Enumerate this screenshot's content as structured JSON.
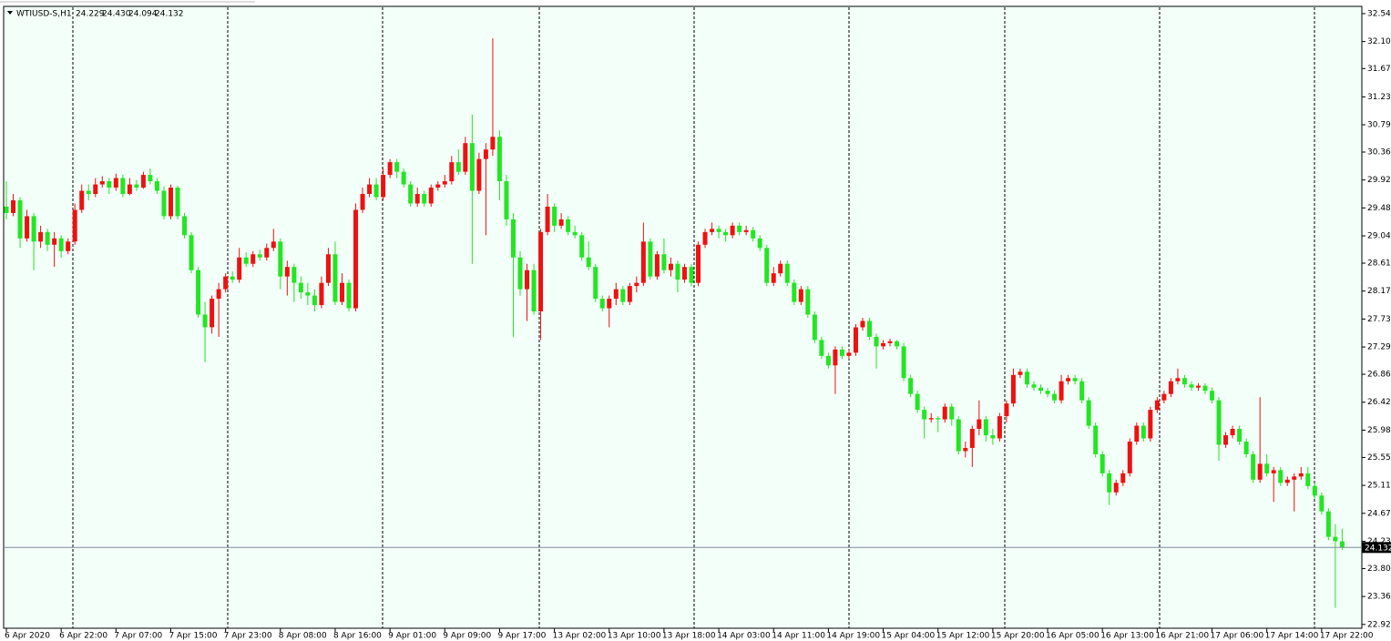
{
  "chart_data": {
    "type": "candlestick",
    "title": "WTIUSD-S,H1",
    "header_values": [
      "24.229",
      "24.430",
      "24.094",
      "24.132"
    ],
    "up_color": "#ee1111",
    "down_color": "#22e622",
    "ylim": [
      22.86,
      32.64
    ],
    "yticks": [
      {
        "value": 32.54,
        "label": "32.540"
      },
      {
        "value": 32.1,
        "label": "32.100"
      },
      {
        "value": 31.675,
        "label": "31.675"
      },
      {
        "value": 31.23,
        "label": "31.230"
      },
      {
        "value": 30.79,
        "label": "30.790"
      },
      {
        "value": 30.36,
        "label": "30.360"
      },
      {
        "value": 29.92,
        "label": "29.920"
      },
      {
        "value": 29.48,
        "label": "29.480"
      },
      {
        "value": 29.04,
        "label": "29.040"
      },
      {
        "value": 28.61,
        "label": "28.610"
      },
      {
        "value": 28.17,
        "label": "28.170"
      },
      {
        "value": 27.73,
        "label": "27.730"
      },
      {
        "value": 27.29,
        "label": "27.290"
      },
      {
        "value": 26.86,
        "label": "26.860"
      },
      {
        "value": 26.42,
        "label": "26.420"
      },
      {
        "value": 25.98,
        "label": "25.980"
      },
      {
        "value": 25.55,
        "label": "25.550"
      },
      {
        "value": 25.11,
        "label": "25.110"
      },
      {
        "value": 24.67,
        "label": "24.670"
      },
      {
        "value": 24.23,
        "label": "24.230"
      },
      {
        "value": 23.8,
        "label": "23.800"
      },
      {
        "value": 23.36,
        "label": "23.360"
      },
      {
        "value": 22.92,
        "label": "22.920"
      }
    ],
    "categories": [
      "6 Apr 2020",
      null,
      null,
      null,
      null,
      null,
      null,
      null,
      "6 Apr 22:00",
      null,
      null,
      null,
      null,
      null,
      null,
      null,
      "7 Apr 07:00",
      null,
      null,
      null,
      null,
      null,
      null,
      null,
      "7 Apr 15:00",
      null,
      null,
      null,
      null,
      null,
      null,
      null,
      "7 Apr 23:00",
      null,
      null,
      null,
      null,
      null,
      null,
      null,
      "8 Apr 08:00",
      null,
      null,
      null,
      null,
      null,
      null,
      null,
      "8 Apr 16:00",
      null,
      null,
      null,
      null,
      null,
      null,
      null,
      "9 Apr 01:00",
      null,
      null,
      null,
      null,
      null,
      null,
      null,
      "9 Apr 09:00",
      null,
      null,
      null,
      null,
      null,
      null,
      null,
      "9 Apr 17:00",
      null,
      null,
      null,
      null,
      null,
      null,
      null,
      "13 Apr 02:00",
      null,
      null,
      null,
      null,
      null,
      null,
      null,
      "13 Apr 10:00",
      null,
      null,
      null,
      null,
      null,
      null,
      null,
      "13 Apr 18:00",
      null,
      null,
      null,
      null,
      null,
      null,
      null,
      "14 Apr 03:00",
      null,
      null,
      null,
      null,
      null,
      null,
      null,
      "14 Apr 11:00",
      null,
      null,
      null,
      null,
      null,
      null,
      null,
      "14 Apr 19:00",
      null,
      null,
      null,
      null,
      null,
      null,
      null,
      "15 Apr 04:00",
      null,
      null,
      null,
      null,
      null,
      null,
      null,
      "15 Apr 12:00",
      null,
      null,
      null,
      null,
      null,
      null,
      null,
      "15 Apr 20:00",
      null,
      null,
      null,
      null,
      null,
      null,
      null,
      "16 Apr 05:00",
      null,
      null,
      null,
      null,
      null,
      null,
      null,
      "16 Apr 13:00",
      null,
      null,
      null,
      null,
      null,
      null,
      null,
      "16 Apr 21:00",
      null,
      null,
      null,
      null,
      null,
      null,
      null,
      "17 Apr 06:00",
      null,
      null,
      null,
      null,
      null,
      null,
      null,
      "17 Apr 14:00",
      null,
      null,
      null,
      null,
      null,
      null,
      null,
      "17 Apr 22:00",
      null,
      null,
      null
    ],
    "candles": [
      [
        29.5,
        29.9,
        29.3,
        29.4
      ],
      [
        29.4,
        29.7,
        29.35,
        29.6
      ],
      [
        29.6,
        29.65,
        28.85,
        29.0
      ],
      [
        29.0,
        29.45,
        28.95,
        29.35
      ],
      [
        29.35,
        29.4,
        28.5,
        28.95
      ],
      [
        28.95,
        29.2,
        28.85,
        29.1
      ],
      [
        29.1,
        29.15,
        28.8,
        28.9
      ],
      [
        28.9,
        29.1,
        28.55,
        29.0
      ],
      [
        29.0,
        29.05,
        28.7,
        28.8
      ],
      [
        28.8,
        29.0,
        28.75,
        28.95
      ],
      [
        28.95,
        29.55,
        28.9,
        29.45
      ],
      [
        29.45,
        29.85,
        29.4,
        29.75
      ],
      [
        29.75,
        29.85,
        29.6,
        29.7
      ],
      [
        29.7,
        29.95,
        29.65,
        29.85
      ],
      [
        29.85,
        29.98,
        29.8,
        29.9
      ],
      [
        29.9,
        29.95,
        29.7,
        29.8
      ],
      [
        29.8,
        30.02,
        29.75,
        29.95
      ],
      [
        29.95,
        30.0,
        29.65,
        29.7
      ],
      [
        29.7,
        29.95,
        29.68,
        29.85
      ],
      [
        29.85,
        29.92,
        29.75,
        29.8
      ],
      [
        29.8,
        30.05,
        29.78,
        30.0
      ],
      [
        30.0,
        30.1,
        29.85,
        29.9
      ],
      [
        29.9,
        29.95,
        29.7,
        29.75
      ],
      [
        29.75,
        29.82,
        29.3,
        29.35
      ],
      [
        29.35,
        29.85,
        29.3,
        29.8
      ],
      [
        29.8,
        29.83,
        29.3,
        29.35
      ],
      [
        29.35,
        29.4,
        29.0,
        29.05
      ],
      [
        29.05,
        29.1,
        28.45,
        28.5
      ],
      [
        28.5,
        28.55,
        27.75,
        27.8
      ],
      [
        27.8,
        28.0,
        27.05,
        27.6
      ],
      [
        27.6,
        28.1,
        27.5,
        28.05
      ],
      [
        28.05,
        28.3,
        27.45,
        28.2
      ],
      [
        28.2,
        28.45,
        28.15,
        28.4
      ],
      [
        28.4,
        28.48,
        28.3,
        28.35
      ],
      [
        28.35,
        28.85,
        28.3,
        28.7
      ],
      [
        28.7,
        28.78,
        28.55,
        28.6
      ],
      [
        28.6,
        28.8,
        28.55,
        28.75
      ],
      [
        28.75,
        28.82,
        28.65,
        28.7
      ],
      [
        28.7,
        28.92,
        28.65,
        28.85
      ],
      [
        28.85,
        29.15,
        28.8,
        28.95
      ],
      [
        28.95,
        29.0,
        28.2,
        28.4
      ],
      [
        28.4,
        28.65,
        28.1,
        28.55
      ],
      [
        28.55,
        28.6,
        28.0,
        28.3
      ],
      [
        28.3,
        28.4,
        28.05,
        28.15
      ],
      [
        28.15,
        28.3,
        27.95,
        28.1
      ],
      [
        28.1,
        28.2,
        27.85,
        27.95
      ],
      [
        27.95,
        28.4,
        27.9,
        28.3
      ],
      [
        28.3,
        28.85,
        28.25,
        28.75
      ],
      [
        28.75,
        28.95,
        27.95,
        28.0
      ],
      [
        28.0,
        28.45,
        27.95,
        28.3
      ],
      [
        28.3,
        28.35,
        27.85,
        27.9
      ],
      [
        27.9,
        29.55,
        27.85,
        29.45
      ],
      [
        29.45,
        29.8,
        29.4,
        29.7
      ],
      [
        29.7,
        29.95,
        29.65,
        29.85
      ],
      [
        29.85,
        29.95,
        29.6,
        29.65
      ],
      [
        29.65,
        30.1,
        29.6,
        30.0
      ],
      [
        30.0,
        30.25,
        29.95,
        30.2
      ],
      [
        30.2,
        30.25,
        29.95,
        30.05
      ],
      [
        30.05,
        30.1,
        29.8,
        29.85
      ],
      [
        29.85,
        29.9,
        29.5,
        29.55
      ],
      [
        29.55,
        29.8,
        29.5,
        29.7
      ],
      [
        29.7,
        29.75,
        29.5,
        29.55
      ],
      [
        29.55,
        29.85,
        29.5,
        29.8
      ],
      [
        29.8,
        29.9,
        29.75,
        29.85
      ],
      [
        29.85,
        30.0,
        29.8,
        29.9
      ],
      [
        29.9,
        30.3,
        29.85,
        30.2
      ],
      [
        30.2,
        30.4,
        30.0,
        30.05
      ],
      [
        30.05,
        30.6,
        30.0,
        30.5
      ],
      [
        30.5,
        30.95,
        28.6,
        29.75
      ],
      [
        29.75,
        30.35,
        29.7,
        30.25
      ],
      [
        30.25,
        30.5,
        29.05,
        30.4
      ],
      [
        30.4,
        32.15,
        30.3,
        30.6
      ],
      [
        30.6,
        30.7,
        29.6,
        29.9
      ],
      [
        29.9,
        30.0,
        29.2,
        29.3
      ],
      [
        29.3,
        29.4,
        27.45,
        28.7
      ],
      [
        28.7,
        28.8,
        28.1,
        28.2
      ],
      [
        28.2,
        28.6,
        27.7,
        28.5
      ],
      [
        28.5,
        28.6,
        27.8,
        27.85
      ],
      [
        27.85,
        29.15,
        27.4,
        29.1
      ],
      [
        29.1,
        29.7,
        29.05,
        29.5
      ],
      [
        29.5,
        29.55,
        29.1,
        29.2
      ],
      [
        29.2,
        29.4,
        29.15,
        29.3
      ],
      [
        29.3,
        29.35,
        29.05,
        29.1
      ],
      [
        29.1,
        29.2,
        29.0,
        29.05
      ],
      [
        29.05,
        29.1,
        28.65,
        28.7
      ],
      [
        28.7,
        28.95,
        28.5,
        28.55
      ],
      [
        28.55,
        28.6,
        28.0,
        28.05
      ],
      [
        28.05,
        28.1,
        27.85,
        27.9
      ],
      [
        27.9,
        28.1,
        27.6,
        28.05
      ],
      [
        28.05,
        28.3,
        27.95,
        28.2
      ],
      [
        28.2,
        28.25,
        27.95,
        28.0
      ],
      [
        28.0,
        28.3,
        27.95,
        28.25
      ],
      [
        28.25,
        28.4,
        28.15,
        28.3
      ],
      [
        28.3,
        29.25,
        28.25,
        28.95
      ],
      [
        28.95,
        29.0,
        28.35,
        28.4
      ],
      [
        28.4,
        28.8,
        28.35,
        28.75
      ],
      [
        28.75,
        29.0,
        28.45,
        28.5
      ],
      [
        28.5,
        28.7,
        28.4,
        28.6
      ],
      [
        28.6,
        28.65,
        28.15,
        28.35
      ],
      [
        28.35,
        28.6,
        28.3,
        28.55
      ],
      [
        28.55,
        28.6,
        28.25,
        28.3
      ],
      [
        28.3,
        28.95,
        28.25,
        28.9
      ],
      [
        28.9,
        29.15,
        28.85,
        29.1
      ],
      [
        29.1,
        29.25,
        29.05,
        29.15
      ],
      [
        29.15,
        29.2,
        29.0,
        29.1
      ],
      [
        29.1,
        29.15,
        28.95,
        29.05
      ],
      [
        29.05,
        29.25,
        29.0,
        29.2
      ],
      [
        29.2,
        29.25,
        29.05,
        29.1
      ],
      [
        29.1,
        29.2,
        29.05,
        29.13
      ],
      [
        29.13,
        29.18,
        28.95,
        29.0
      ],
      [
        29.0,
        29.05,
        28.8,
        28.85
      ],
      [
        28.85,
        28.9,
        28.25,
        28.3
      ],
      [
        28.3,
        28.55,
        28.25,
        28.45
      ],
      [
        28.45,
        28.65,
        28.4,
        28.6
      ],
      [
        28.6,
        28.65,
        28.25,
        28.3
      ],
      [
        28.3,
        28.35,
        27.95,
        28.0
      ],
      [
        28.0,
        28.25,
        27.95,
        28.2
      ],
      [
        28.2,
        28.25,
        27.75,
        27.8
      ],
      [
        27.8,
        27.85,
        27.35,
        27.4
      ],
      [
        27.4,
        27.45,
        27.1,
        27.15
      ],
      [
        27.15,
        27.2,
        26.95,
        27.0
      ],
      [
        27.0,
        27.3,
        26.55,
        27.25
      ],
      [
        27.25,
        27.3,
        27.1,
        27.15
      ],
      [
        27.15,
        27.25,
        27.1,
        27.2
      ],
      [
        27.2,
        27.65,
        27.15,
        27.6
      ],
      [
        27.6,
        27.75,
        27.55,
        27.7
      ],
      [
        27.7,
        27.75,
        27.4,
        27.45
      ],
      [
        27.45,
        27.5,
        26.95,
        27.3
      ],
      [
        27.3,
        27.4,
        27.25,
        27.35
      ],
      [
        27.35,
        27.42,
        27.3,
        27.38
      ],
      [
        27.38,
        27.4,
        27.25,
        27.3
      ],
      [
        27.3,
        27.35,
        26.75,
        26.8
      ],
      [
        26.8,
        26.85,
        26.5,
        26.55
      ],
      [
        26.55,
        26.6,
        26.25,
        26.3
      ],
      [
        26.3,
        26.35,
        25.85,
        26.15
      ],
      [
        26.15,
        26.25,
        26.1,
        26.17
      ],
      [
        26.17,
        26.2,
        25.95,
        26.15
      ],
      [
        26.15,
        26.4,
        26.1,
        26.35
      ],
      [
        26.35,
        26.4,
        26.05,
        26.15
      ],
      [
        26.15,
        26.2,
        25.6,
        25.65
      ],
      [
        25.65,
        25.8,
        25.55,
        25.7
      ],
      [
        25.7,
        26.05,
        25.4,
        26.0
      ],
      [
        26.0,
        26.45,
        25.9,
        26.15
      ],
      [
        26.15,
        26.2,
        25.8,
        25.9
      ],
      [
        25.9,
        26.0,
        25.75,
        25.85
      ],
      [
        25.85,
        26.25,
        25.8,
        26.2
      ],
      [
        26.2,
        26.45,
        26.1,
        26.4
      ],
      [
        26.4,
        26.95,
        26.35,
        26.85
      ],
      [
        26.85,
        26.95,
        26.8,
        26.9
      ],
      [
        26.9,
        26.95,
        26.65,
        26.7
      ],
      [
        26.7,
        26.75,
        26.6,
        26.65
      ],
      [
        26.65,
        26.7,
        26.55,
        26.6
      ],
      [
        26.6,
        26.65,
        26.5,
        26.55
      ],
      [
        26.55,
        26.6,
        26.4,
        26.45
      ],
      [
        26.45,
        26.85,
        26.4,
        26.75
      ],
      [
        26.75,
        26.85,
        26.7,
        26.8
      ],
      [
        26.8,
        26.85,
        26.7,
        26.75
      ],
      [
        26.75,
        26.8,
        26.4,
        26.45
      ],
      [
        26.45,
        26.5,
        26.0,
        26.05
      ],
      [
        26.05,
        26.1,
        25.55,
        25.6
      ],
      [
        25.6,
        25.65,
        25.25,
        25.3
      ],
      [
        25.3,
        25.35,
        24.8,
        25.0
      ],
      [
        25.0,
        25.2,
        24.95,
        25.15
      ],
      [
        25.15,
        25.35,
        25.1,
        25.3
      ],
      [
        25.3,
        25.85,
        25.25,
        25.8
      ],
      [
        25.8,
        26.1,
        25.75,
        26.05
      ],
      [
        26.05,
        26.1,
        25.8,
        25.85
      ],
      [
        25.85,
        26.35,
        25.8,
        26.3
      ],
      [
        26.3,
        26.5,
        26.25,
        26.45
      ],
      [
        26.45,
        26.6,
        26.4,
        26.55
      ],
      [
        26.55,
        26.8,
        26.5,
        26.75
      ],
      [
        26.75,
        26.95,
        26.7,
        26.8
      ],
      [
        26.8,
        26.85,
        26.65,
        26.7
      ],
      [
        26.7,
        26.75,
        26.6,
        26.65
      ],
      [
        26.65,
        26.72,
        26.6,
        26.68
      ],
      [
        26.68,
        26.72,
        26.55,
        26.6
      ],
      [
        26.6,
        26.65,
        26.4,
        26.45
      ],
      [
        26.45,
        26.5,
        25.5,
        25.75
      ],
      [
        25.75,
        25.95,
        25.7,
        25.9
      ],
      [
        25.9,
        26.05,
        25.85,
        26.0
      ],
      [
        26.0,
        26.05,
        25.75,
        25.8
      ],
      [
        25.8,
        25.85,
        25.55,
        25.6
      ],
      [
        25.6,
        25.65,
        25.15,
        25.2
      ],
      [
        25.2,
        26.5,
        25.15,
        25.45
      ],
      [
        25.45,
        25.6,
        25.25,
        25.3
      ],
      [
        25.3,
        25.4,
        24.85,
        25.35
      ],
      [
        25.35,
        25.4,
        25.1,
        25.15
      ],
      [
        25.15,
        25.25,
        25.1,
        25.2
      ],
      [
        25.2,
        25.3,
        24.7,
        25.25
      ],
      [
        25.25,
        25.4,
        25.2,
        25.3
      ],
      [
        25.3,
        25.4,
        25.05,
        25.1
      ],
      [
        25.1,
        25.15,
        24.9,
        24.95
      ],
      [
        24.95,
        25.0,
        24.65,
        24.7
      ],
      [
        24.7,
        24.75,
        24.25,
        24.3
      ],
      [
        24.3,
        24.5,
        23.18,
        24.23
      ],
      [
        24.229,
        24.43,
        24.094,
        24.132
      ]
    ]
  }
}
